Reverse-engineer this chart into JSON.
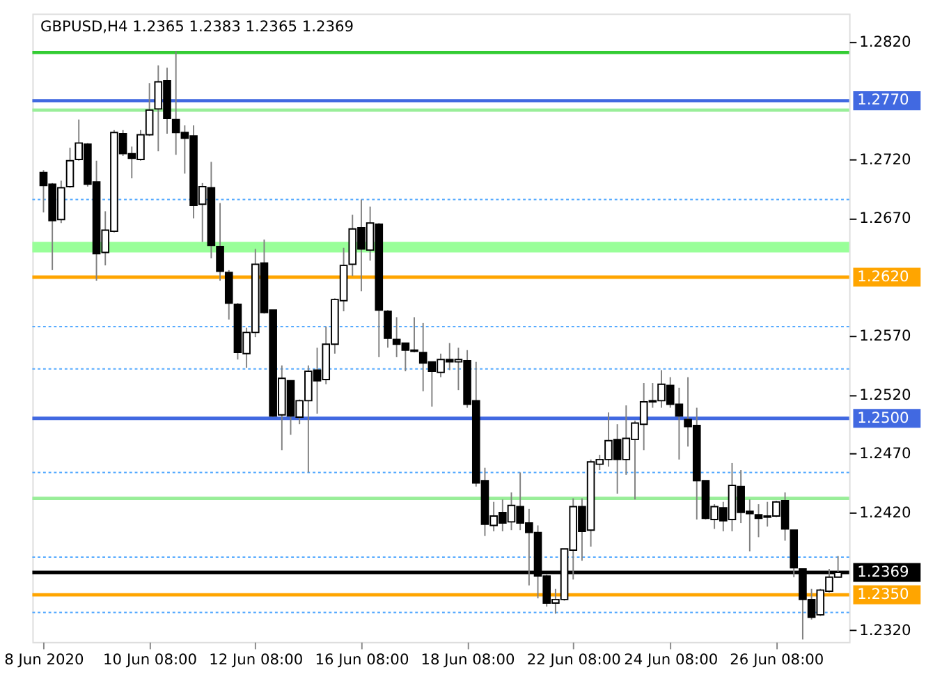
{
  "chart_data": {
    "type": "candlestick",
    "title": "GBPUSD,H4  1.2365 1.2383 1.2365 1.2369",
    "categories": [
      "8 Jun 2020",
      null,
      null,
      null,
      null,
      null,
      null,
      null,
      null,
      null,
      null,
      null,
      "10 Jun 08:00",
      null,
      null,
      null,
      null,
      null,
      null,
      null,
      null,
      null,
      null,
      null,
      "12 Jun 08:00",
      null,
      null,
      null,
      null,
      null,
      null,
      null,
      null,
      null,
      null,
      null,
      "16 Jun 08:00",
      null,
      null,
      null,
      null,
      null,
      null,
      null,
      null,
      null,
      null,
      null,
      "18 Jun 08:00",
      null,
      null,
      null,
      null,
      null,
      null,
      null,
      null,
      null,
      null,
      null,
      "22 Jun 08:00",
      null,
      null,
      null,
      null,
      null,
      null,
      null,
      null,
      null,
      null,
      "24 Jun 08:00",
      null,
      null,
      null,
      null,
      null,
      null,
      null,
      null,
      null,
      null,
      null,
      "26 Jun 08:00",
      null,
      null,
      null,
      null,
      null,
      null,
      null
    ],
    "ohlc": [
      [
        1.2709,
        1.2711,
        1.2675,
        1.2698
      ],
      [
        1.2699,
        1.27,
        1.2626,
        1.2668
      ],
      [
        1.2669,
        1.2702,
        1.2666,
        1.2696
      ],
      [
        1.2697,
        1.273,
        1.2696,
        1.2719
      ],
      [
        1.272,
        1.2754,
        1.2719,
        1.2734
      ],
      [
        1.2733,
        1.2734,
        1.2697,
        1.2699
      ],
      [
        1.2701,
        1.2719,
        1.2617,
        1.264
      ],
      [
        1.2641,
        1.2676,
        1.263,
        1.266
      ],
      [
        1.2659,
        1.2745,
        1.2658,
        1.2743
      ],
      [
        1.2742,
        1.2745,
        1.2723,
        1.2725
      ],
      [
        1.2725,
        1.2731,
        1.2704,
        1.2721
      ],
      [
        1.272,
        1.2745,
        1.2719,
        1.2741
      ],
      [
        1.2741,
        1.2785,
        1.274,
        1.2762
      ],
      [
        1.2763,
        1.28,
        1.2727,
        1.2786
      ],
      [
        1.2787,
        1.2798,
        1.2742,
        1.2755
      ],
      [
        1.2754,
        1.2812,
        1.2724,
        1.2743
      ],
      [
        1.2743,
        1.2749,
        1.2708,
        1.2738
      ],
      [
        1.274,
        1.2749,
        1.267,
        1.2681
      ],
      [
        1.2682,
        1.27,
        1.265,
        1.2697
      ],
      [
        1.2696,
        1.2718,
        1.2636,
        1.2647
      ],
      [
        1.2646,
        1.2683,
        1.2617,
        1.2625
      ],
      [
        1.2624,
        1.2626,
        1.2584,
        1.2598
      ],
      [
        1.2597,
        1.2598,
        1.255,
        1.2556
      ],
      [
        1.2555,
        1.2577,
        1.2543,
        1.2573
      ],
      [
        1.2573,
        1.2644,
        1.2569,
        1.2631
      ],
      [
        1.2632,
        1.2652,
        1.2589,
        1.259
      ],
      [
        1.2592,
        1.2592,
        1.2501,
        1.2502
      ],
      [
        1.2503,
        1.2545,
        1.2473,
        1.2534
      ],
      [
        1.2532,
        1.2532,
        1.2486,
        1.2502
      ],
      [
        1.2501,
        1.2516,
        1.2495,
        1.2515
      ],
      [
        1.2515,
        1.2545,
        1.2454,
        1.254
      ],
      [
        1.2541,
        1.256,
        1.2504,
        1.2532
      ],
      [
        1.2533,
        1.2578,
        1.2529,
        1.2563
      ],
      [
        1.2563,
        1.2602,
        1.2555,
        1.2601
      ],
      [
        1.26,
        1.2645,
        1.2591,
        1.263
      ],
      [
        1.2631,
        1.2673,
        1.2621,
        1.2661
      ],
      [
        1.2662,
        1.2686,
        1.2608,
        1.2644
      ],
      [
        1.2643,
        1.268,
        1.2634,
        1.2666
      ],
      [
        1.2665,
        1.2666,
        1.2552,
        1.2592
      ],
      [
        1.2591,
        1.2592,
        1.256,
        1.2568
      ],
      [
        1.2567,
        1.2586,
        1.2552,
        1.2563
      ],
      [
        1.2564,
        1.2564,
        1.254,
        1.2558
      ],
      [
        1.2558,
        1.2586,
        1.2556,
        1.2557
      ],
      [
        1.2556,
        1.2581,
        1.2523,
        1.2547
      ],
      [
        1.2548,
        1.2548,
        1.251,
        1.254
      ],
      [
        1.2539,
        1.2555,
        1.2535,
        1.255
      ],
      [
        1.255,
        1.2564,
        1.2541,
        1.2548
      ],
      [
        1.2548,
        1.256,
        1.2524,
        1.255
      ],
      [
        1.2549,
        1.2558,
        1.2509,
        1.2512
      ],
      [
        1.2515,
        1.2548,
        1.2442,
        1.2445
      ],
      [
        1.2447,
        1.2458,
        1.24,
        1.241
      ],
      [
        1.2409,
        1.2429,
        1.2404,
        1.2417
      ],
      [
        1.242,
        1.2431,
        1.2404,
        1.2411
      ],
      [
        1.2412,
        1.2437,
        1.2405,
        1.2426
      ],
      [
        1.2425,
        1.2454,
        1.2405,
        1.2411
      ],
      [
        1.2411,
        1.2423,
        1.2358,
        1.2403
      ],
      [
        1.2403,
        1.2409,
        1.2347,
        1.2366
      ],
      [
        1.2366,
        1.2367,
        1.234,
        1.2343
      ],
      [
        1.2343,
        1.2355,
        1.2334,
        1.2346
      ],
      [
        1.2346,
        1.2389,
        1.2345,
        1.2389
      ],
      [
        1.2388,
        1.2432,
        1.2363,
        1.2425
      ],
      [
        1.2425,
        1.2432,
        1.2379,
        1.2404
      ],
      [
        1.2405,
        1.2465,
        1.2391,
        1.2463
      ],
      [
        1.2461,
        1.2469,
        1.2456,
        1.2465
      ],
      [
        1.2465,
        1.2505,
        1.2459,
        1.2481
      ],
      [
        1.2482,
        1.2495,
        1.2436,
        1.2465
      ],
      [
        1.2465,
        1.2511,
        1.2452,
        1.2483
      ],
      [
        1.2482,
        1.2498,
        1.2431,
        1.2496
      ],
      [
        1.2495,
        1.253,
        1.2473,
        1.2514
      ],
      [
        1.2515,
        1.253,
        1.2509,
        1.2514
      ],
      [
        1.2515,
        1.2541,
        1.2509,
        1.2529
      ],
      [
        1.2528,
        1.2535,
        1.2509,
        1.2512
      ],
      [
        1.2512,
        1.2526,
        1.2465,
        1.2502
      ],
      [
        1.2499,
        1.2535,
        1.2476,
        1.2493
      ],
      [
        1.2494,
        1.2509,
        1.2414,
        1.2447
      ],
      [
        1.2447,
        1.2447,
        1.2414,
        1.2415
      ],
      [
        1.2414,
        1.2427,
        1.2406,
        1.2425
      ],
      [
        1.2424,
        1.2429,
        1.2404,
        1.2413
      ],
      [
        1.2414,
        1.2462,
        1.2404,
        1.2443
      ],
      [
        1.2442,
        1.2456,
        1.2411,
        1.242
      ],
      [
        1.2421,
        1.2431,
        1.2387,
        1.2419
      ],
      [
        1.2418,
        1.2427,
        1.2399,
        1.2415
      ],
      [
        1.2417,
        1.2429,
        1.2408,
        1.2416
      ],
      [
        1.2417,
        1.243,
        1.2416,
        1.2429
      ],
      [
        1.243,
        1.2437,
        1.2396,
        1.2406
      ],
      [
        1.2405,
        1.2405,
        1.2365,
        1.2373
      ],
      [
        1.2372,
        1.2372,
        1.2312,
        1.2346
      ],
      [
        1.2346,
        1.2355,
        1.2329,
        1.2331
      ],
      [
        1.2333,
        1.2355,
        1.2332,
        1.2354
      ],
      [
        1.2353,
        1.2372,
        1.2352,
        1.2365
      ],
      [
        1.2365,
        1.2383,
        1.2365,
        1.2369
      ]
    ],
    "ylim": [
      1.231,
      1.2844
    ],
    "yticks": [
      {
        "value": 1.282,
        "label": "1.2820"
      },
      {
        "value": 1.272,
        "label": "1.2720"
      },
      {
        "value": 1.267,
        "label": "1.2670"
      },
      {
        "value": 1.257,
        "label": "1.2570"
      },
      {
        "value": 1.252,
        "label": "1.2520"
      },
      {
        "value": 1.247,
        "label": "1.2470"
      },
      {
        "value": 1.242,
        "label": "1.2420"
      },
      {
        "value": 1.232,
        "label": "1.2320"
      }
    ],
    "ref_lines": [
      {
        "axis": "y",
        "value": 1.2811,
        "label": null,
        "color": "#33cc33",
        "line_style": "solid"
      },
      {
        "axis": "y",
        "value": 1.277,
        "label": "1.2770",
        "color": "#4169e1",
        "line_style": "solid"
      },
      {
        "axis": "y",
        "value": 1.2762,
        "label": null,
        "color": "#99ee99",
        "line_style": "solid"
      },
      {
        "axis": "y",
        "value": 1.2686,
        "label": null,
        "color": "#55aaff",
        "line_style": "dotted"
      },
      {
        "axis": "y",
        "value": 1.262,
        "label": "1.2620",
        "color": "#ffa500",
        "line_style": "solid"
      },
      {
        "axis": "y",
        "value": 1.2578,
        "label": null,
        "color": "#55aaff",
        "line_style": "dotted"
      },
      {
        "axis": "y",
        "value": 1.2542,
        "label": null,
        "color": "#55aaff",
        "line_style": "dotted"
      },
      {
        "axis": "y",
        "value": 1.25,
        "label": "1.2500",
        "color": "#4169e1",
        "line_style": "solid"
      },
      {
        "axis": "y",
        "value": 1.2454,
        "label": null,
        "color": "#55aaff",
        "line_style": "dotted"
      },
      {
        "axis": "y",
        "value": 1.2432,
        "label": null,
        "color": "#99ee99",
        "line_style": "solid"
      },
      {
        "axis": "y",
        "value": 1.2382,
        "label": null,
        "color": "#55aaff",
        "line_style": "dotted"
      },
      {
        "axis": "y",
        "value": 1.2369,
        "label": "1.2369",
        "color": "#000000",
        "line_style": "solid"
      },
      {
        "axis": "y",
        "value": 1.235,
        "label": "1.2350",
        "color": "#ffa500",
        "line_style": "solid"
      },
      {
        "axis": "y",
        "value": 1.2335,
        "label": null,
        "color": "#55aaff",
        "line_style": "dotted"
      }
    ],
    "bands": [
      {
        "axis": "y",
        "from": 1.2641,
        "to": 1.265,
        "label": null,
        "color": "#99ff99"
      }
    ]
  }
}
